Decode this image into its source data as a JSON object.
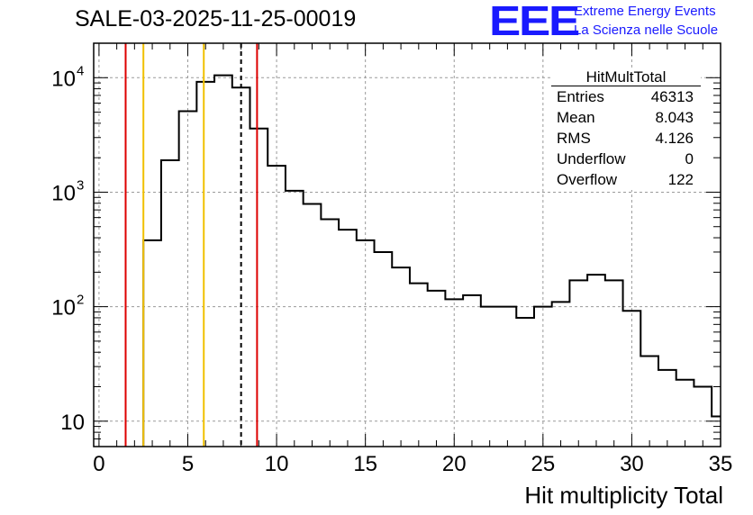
{
  "header": {
    "run_title": "SALE-03-2025-11-25-00019",
    "logo_text": "EEE",
    "logo_line1": "Extreme Energy Events",
    "logo_line2": "La Scienza nelle Scuole"
  },
  "stats_box": {
    "title": "HitMultTotal",
    "rows": [
      {
        "label": "Entries",
        "value": "46313"
      },
      {
        "label": "Mean",
        "value": "8.043"
      },
      {
        "label": "RMS",
        "value": "4.126"
      },
      {
        "label": "Underflow",
        "value": "0"
      },
      {
        "label": "Overflow",
        "value": "122"
      }
    ]
  },
  "chart_data": {
    "type": "histogram",
    "title": "SALE-03-2025-11-25-00019",
    "xlabel": "Hit multiplicity Total",
    "ylabel": "",
    "xlim": [
      -0.3,
      35
    ],
    "ylim": [
      6,
      20000
    ],
    "yscale": "log",
    "grid": true,
    "x_ticks": [
      0,
      5,
      10,
      15,
      20,
      25,
      30,
      35
    ],
    "x_tick_labels": [
      "0",
      "5",
      "10",
      "15",
      "20",
      "25",
      "30",
      "35"
    ],
    "y_ticks": [
      10,
      100,
      1000,
      10000
    ],
    "y_tick_labels": [
      "10",
      "10",
      "10",
      "10"
    ],
    "y_tick_exponents": [
      "",
      "2",
      "3",
      "4"
    ],
    "bin_edges": [
      2.5,
      3.5,
      4.5,
      5.5,
      6.5,
      7.5,
      8.5,
      9.5,
      10.5,
      11.5,
      12.5,
      13.5,
      14.5,
      15.5,
      16.5,
      17.5,
      18.5,
      19.5,
      20.5,
      21.5,
      22.5,
      23.5,
      24.5,
      25.5,
      26.5,
      27.5,
      28.5,
      29.5,
      30.5,
      31.5,
      32.5,
      33.5,
      34.5,
      35.5
    ],
    "counts": [
      380,
      1900,
      5100,
      9200,
      10500,
      8200,
      3600,
      1700,
      1030,
      790,
      580,
      470,
      380,
      300,
      220,
      160,
      138,
      116,
      126,
      100,
      100,
      80,
      100,
      110,
      170,
      190,
      170,
      92,
      37,
      28,
      23,
      20,
      11
    ],
    "vertical_lines": [
      {
        "x": 1.5,
        "color": "#dd0000",
        "style": "solid"
      },
      {
        "x": 2.5,
        "color": "#f0c000",
        "style": "solid"
      },
      {
        "x": 5.9,
        "color": "#f0c000",
        "style": "solid"
      },
      {
        "x": 8.0,
        "color": "#000000",
        "style": "dashed"
      },
      {
        "x": 8.9,
        "color": "#dd0000",
        "style": "solid"
      }
    ]
  }
}
